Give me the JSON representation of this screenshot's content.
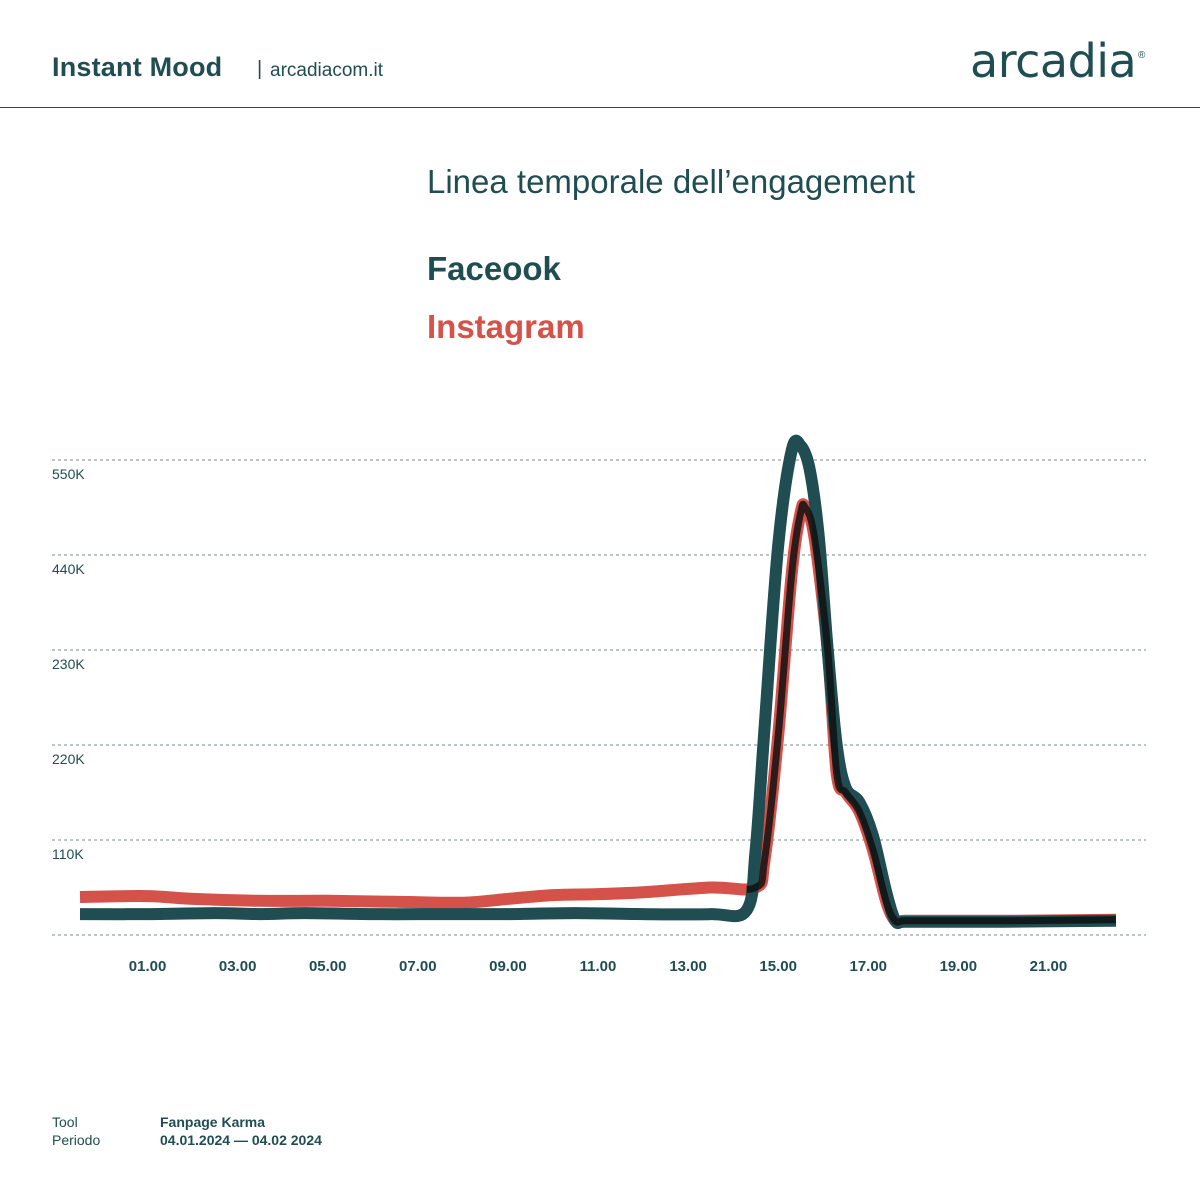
{
  "header": {
    "brand": "Instant Mood",
    "separator": "|",
    "site": "arcadiacom.it",
    "logo": "arcadia",
    "logo_mark": "®"
  },
  "colors": {
    "facebook": "#1f4d52",
    "instagram": "#d4524a",
    "overlay": "#111111",
    "text": "#1f4d52"
  },
  "chart_data": {
    "type": "line",
    "title": "Linea temporale dell’engagement",
    "y_tick_labels": [
      "110K",
      "220K",
      "230K",
      "440K",
      "550K"
    ],
    "x_tick_labels": [
      "01.00",
      "03.00",
      "05.00",
      "07.00",
      "09.00",
      "11.00",
      "13.00",
      "15.00",
      "17.00",
      "19.00",
      "21.00"
    ],
    "x_ticks": [
      1,
      3,
      5,
      7,
      9,
      11,
      13,
      15,
      17,
      19,
      21
    ],
    "xlim": [
      -0.5,
      22.5
    ],
    "ylim_levels": [
      0,
      5
    ],
    "grid": "horizontal dashed",
    "series": [
      {
        "name": "Faceook",
        "x": [
          -0.5,
          1,
          2.5,
          3.5,
          4.5,
          6,
          7.5,
          9,
          10.5,
          12,
          13.5,
          14.3,
          14.5,
          14.7,
          15,
          15.3,
          15.5,
          15.7,
          15.9,
          16.1,
          16.3,
          16.5,
          16.8,
          17.1,
          17.4,
          17.6,
          17.8,
          18.5,
          20,
          22.5
        ],
        "y": [
          0.22,
          0.22,
          0.23,
          0.22,
          0.23,
          0.22,
          0.22,
          0.22,
          0.23,
          0.22,
          0.22,
          0.26,
          0.9,
          2.2,
          4.1,
          5.1,
          5.15,
          4.9,
          4.2,
          3.0,
          2.0,
          1.55,
          1.4,
          1.05,
          0.45,
          0.15,
          0.14,
          0.14,
          0.14,
          0.15
        ]
      },
      {
        "name": "Instagram",
        "x": [
          -0.5,
          1,
          2,
          3.5,
          5,
          6.5,
          8,
          9,
          10,
          11,
          12,
          13.5,
          14.5,
          14.7,
          15,
          15.3,
          15.5,
          15.6,
          15.8,
          16.1,
          16.3,
          16.5,
          16.8,
          17.1,
          17.4,
          17.6,
          17.8,
          18.5,
          20,
          22.5
        ],
        "y": [
          0.4,
          0.41,
          0.38,
          0.36,
          0.36,
          0.35,
          0.34,
          0.38,
          0.42,
          0.43,
          0.45,
          0.5,
          0.5,
          0.8,
          2.1,
          3.8,
          4.45,
          4.5,
          4.2,
          3.0,
          1.7,
          1.5,
          1.3,
          0.9,
          0.35,
          0.15,
          0.15,
          0.15,
          0.15,
          0.16
        ]
      }
    ]
  },
  "footer": {
    "tool_label": "Tool",
    "tool_value": "Fanpage Karma",
    "period_label": "Periodo",
    "period_value": "04.01.2024 — 04.02 2024"
  }
}
